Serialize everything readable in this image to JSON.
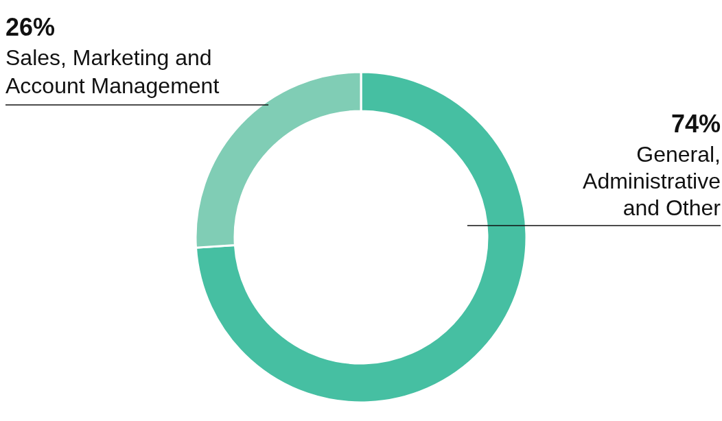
{
  "chart_data": {
    "type": "donut",
    "categories": [
      "General, Administrative and Other",
      "Sales, Marketing and Account Management"
    ],
    "values": [
      74,
      26
    ],
    "value_labels": [
      "74%",
      "26%"
    ],
    "colors": [
      "#46bfa2",
      "#80cdb5"
    ]
  }
}
